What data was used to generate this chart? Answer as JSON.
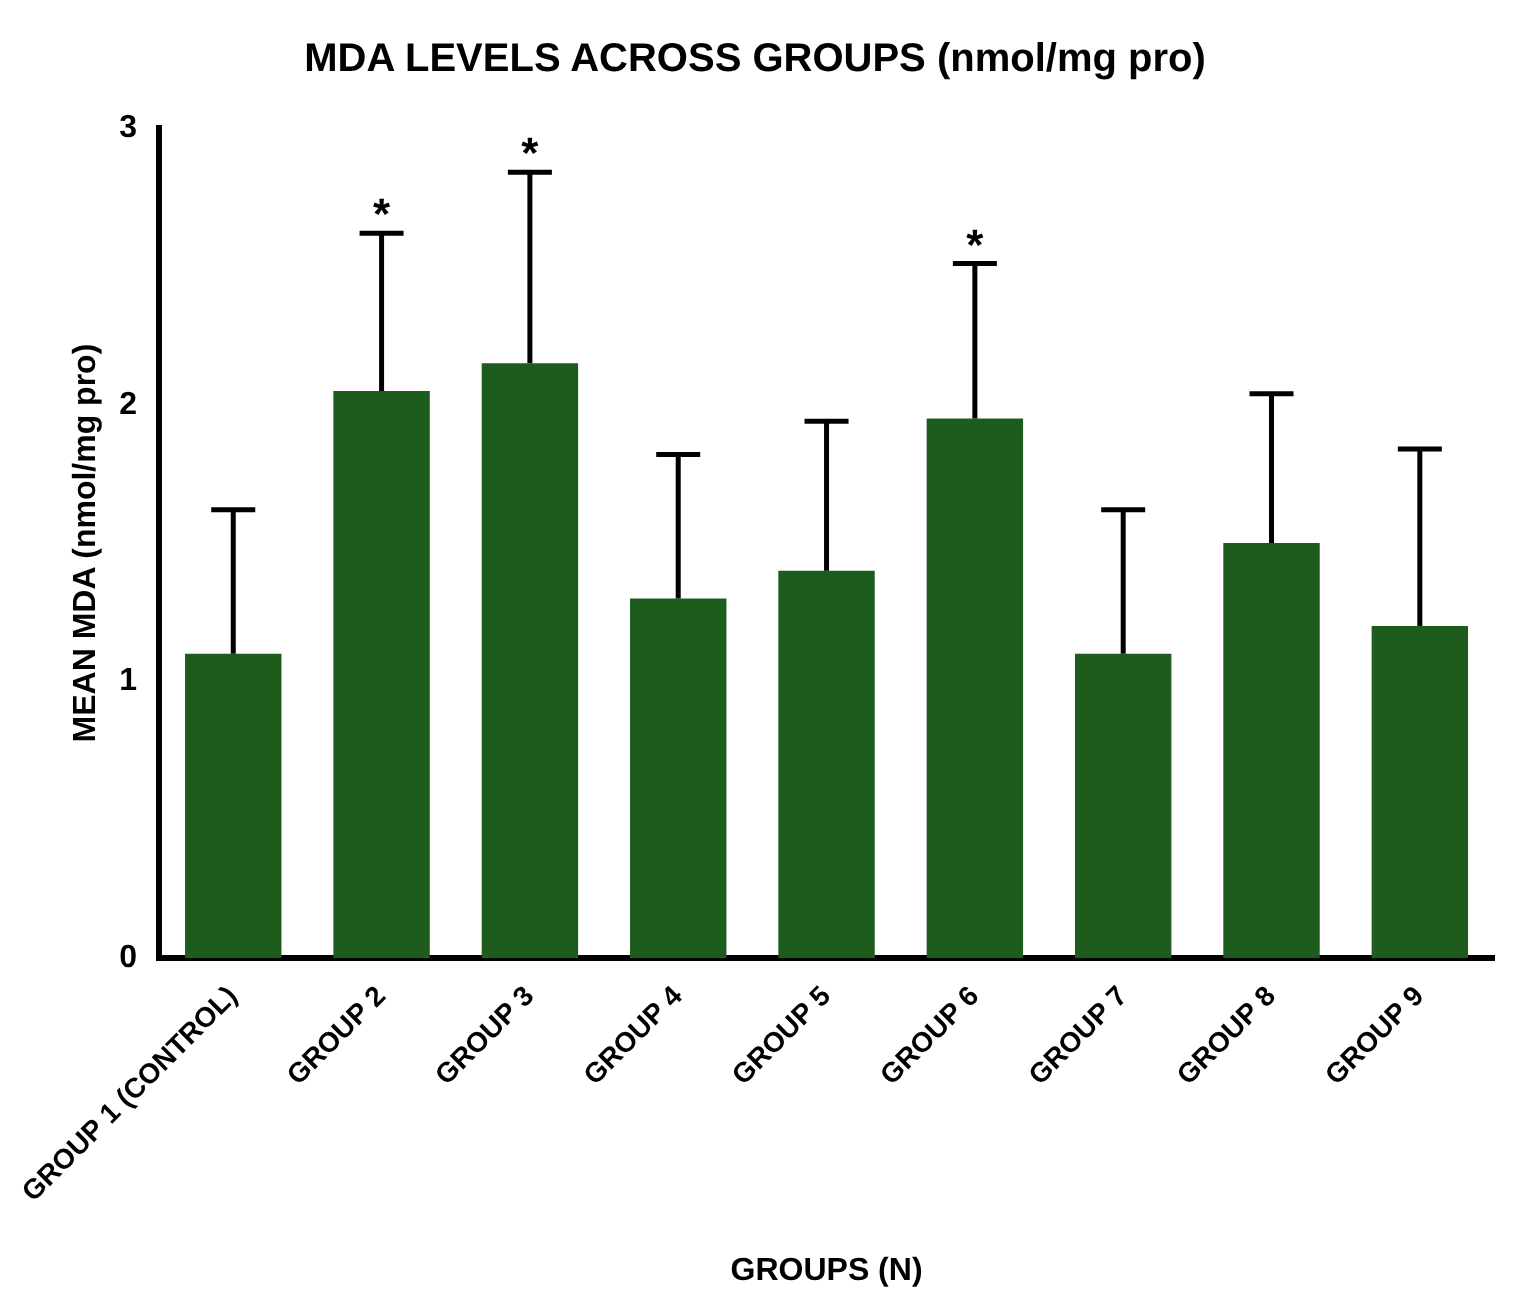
{
  "chart_data": {
    "type": "bar",
    "title": "MDA LEVELS ACROSS GROUPS (nmol/mg pro)",
    "xlabel": "GROUPS (N)",
    "ylabel": "MEAN MDA (nmol/mg pro)",
    "categories": [
      "GROUP 1 (CONTROL)",
      "GROUP 2",
      "GROUP 3",
      "GROUP 4",
      "GROUP 5",
      "GROUP 6",
      "GROUP 7",
      "GROUP 8",
      "GROUP 9"
    ],
    "values": [
      1.1,
      2.05,
      2.15,
      1.3,
      1.4,
      1.95,
      1.1,
      1.5,
      1.2
    ],
    "errors": [
      [
        1.1,
        1.62
      ],
      [
        2.05,
        2.62
      ],
      [
        2.15,
        2.84
      ],
      [
        1.3,
        1.82
      ],
      [
        1.4,
        1.94
      ],
      [
        1.95,
        2.51
      ],
      [
        1.1,
        1.62
      ],
      [
        1.5,
        2.04
      ],
      [
        1.2,
        1.84
      ]
    ],
    "color": "#1e5c1e",
    "ylim": [
      0,
      3
    ],
    "yticks": [
      0,
      1,
      2,
      3
    ],
    "grid": false,
    "legend": false,
    "annotations": [
      {
        "text": "*",
        "x": "GROUP 2",
        "y": 2.62
      },
      {
        "text": "*",
        "x": "GROUP 3",
        "y": 2.84
      },
      {
        "text": "*",
        "x": "GROUP 6",
        "y": 2.51
      }
    ]
  }
}
